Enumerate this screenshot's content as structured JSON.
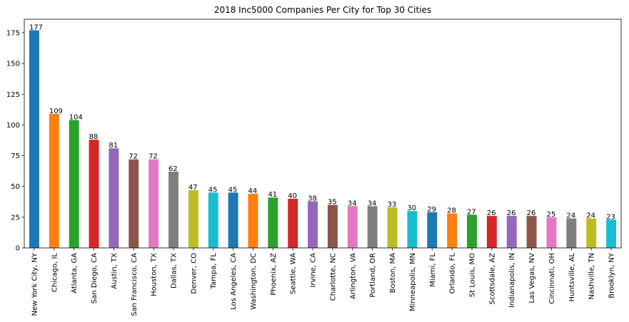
{
  "chart_data": {
    "type": "bar",
    "title": "2018 Inc5000 Companies Per City for Top 30 Cities",
    "xlabel": "",
    "ylabel": "",
    "ylim": [
      0,
      186
    ],
    "yticks": [
      0,
      25,
      50,
      75,
      100,
      125,
      150,
      175
    ],
    "grid": false,
    "categories": [
      "New York City, NY",
      "Chicago, IL",
      "Atlanta, GA",
      "San Diego, CA",
      "Austin, TX",
      "San Francisco, CA",
      "Houston, TX",
      "Dallas, TX",
      "Denver, CO",
      "Tampa, FL",
      "Los Angeles, CA",
      "Washington, DC",
      "Phoenix, AZ",
      "Seattle, WA",
      "Irvine, CA",
      "Charlotte, NC",
      "Arlington, VA",
      "Portland, OR",
      "Boston, MA",
      "Minneapolis, MN",
      "Miami, FL",
      "Orlando, FL",
      "St Louis, MO",
      "Scottsdale, AZ",
      "Indianapolis, IN",
      "Las Vegas, NV",
      "Cincinnati, OH",
      "Huntsville, AL",
      "Nashville, TN",
      "Brooklyn, NY"
    ],
    "values": [
      177,
      109,
      104,
      88,
      81,
      72,
      72,
      62,
      47,
      45,
      45,
      44,
      41,
      40,
      38,
      35,
      34,
      34,
      33,
      30,
      29,
      28,
      27,
      26,
      26,
      26,
      25,
      24,
      24,
      23
    ],
    "colors": [
      "#1f77b4",
      "#ff7f0e",
      "#2ca02c",
      "#d62728",
      "#9467bd",
      "#8c564b",
      "#e377c2",
      "#7f7f7f",
      "#bcbd22",
      "#17becf"
    ]
  }
}
